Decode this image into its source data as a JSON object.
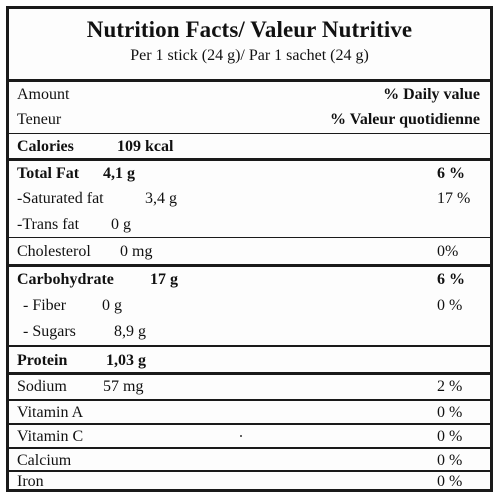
{
  "label": {
    "title": "Nutrition Facts/ Valeur Nutritive",
    "serving": "Per 1 stick (24 g)/ Par 1 sachet (24 g)",
    "header": {
      "amount_en": "Amount",
      "amount_fr": "Teneur",
      "dv_en": "% Daily value",
      "dv_fr": "% Valeur quotidienne"
    },
    "calories": {
      "label": "Calories",
      "amount": "109 kcal"
    },
    "total_fat": {
      "label": "Total Fat",
      "amount": "4,1 g",
      "dv": "6 %"
    },
    "saturated_fat": {
      "label": "-Saturated fat",
      "amount": "3,4 g",
      "dv": "17 %"
    },
    "trans_fat": {
      "label": "-Trans fat",
      "amount": "0 g"
    },
    "cholesterol": {
      "label": "Cholesterol",
      "amount": "0 mg",
      "dv": "0%"
    },
    "carbohydrate": {
      "label": "Carbohydrate",
      "amount": "17 g",
      "dv": "6 %"
    },
    "fiber": {
      "label": "- Fiber",
      "amount": "0 g",
      "dv": "0 %"
    },
    "sugars": {
      "label": "- Sugars",
      "amount": "8,9 g"
    },
    "protein": {
      "label": "Protein",
      "amount": "1,03 g"
    },
    "sodium": {
      "label": "Sodium",
      "amount": "57 mg",
      "dv": "2 %"
    },
    "vitamin_a": {
      "label": "Vitamin A",
      "dv": "0 %"
    },
    "vitamin_c": {
      "label": "Vitamin C",
      "dv": "0 %"
    },
    "calcium": {
      "label": "Calcium",
      "dv": "0 %"
    },
    "iron": {
      "label": "Iron",
      "dv": "0 %"
    }
  }
}
